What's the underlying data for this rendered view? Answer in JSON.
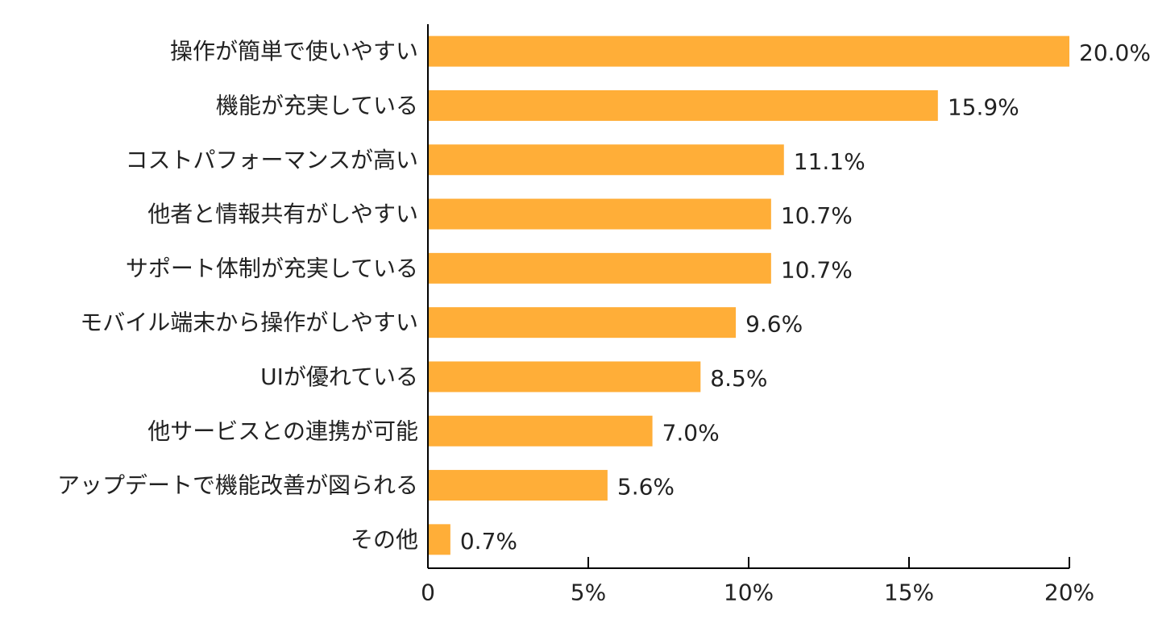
{
  "chart_data": {
    "type": "bar",
    "orientation": "horizontal",
    "title": "",
    "xlabel": "",
    "ylabel": "",
    "categories": [
      "操作が簡単で使いやすい",
      "機能が充実している",
      "コストパフォーマンスが高い",
      "他者と情報共有がしやすい",
      "サポート体制が充実している",
      "モバイル端末から操作がしやすい",
      "UIが優れている",
      "他サービスとの連携が可能",
      "アップデートで機能改善が図られる",
      "その他"
    ],
    "values": [
      20.0,
      15.9,
      11.1,
      10.7,
      10.7,
      9.6,
      8.5,
      7.0,
      5.6,
      0.7
    ],
    "value_labels": [
      "20.0%",
      "15.9%",
      "11.1%",
      "10.7%",
      "10.7%",
      "9.6%",
      "8.5%",
      "7.0%",
      "5.6%",
      "0.7%"
    ],
    "xlim": [
      0,
      20
    ],
    "xticks": [
      0,
      5,
      10,
      15,
      20
    ],
    "xtick_labels": [
      "0",
      "5%",
      "10%",
      "15%",
      "20%"
    ],
    "grid": false,
    "legend": "none",
    "bar_color": "#FFAE38"
  }
}
